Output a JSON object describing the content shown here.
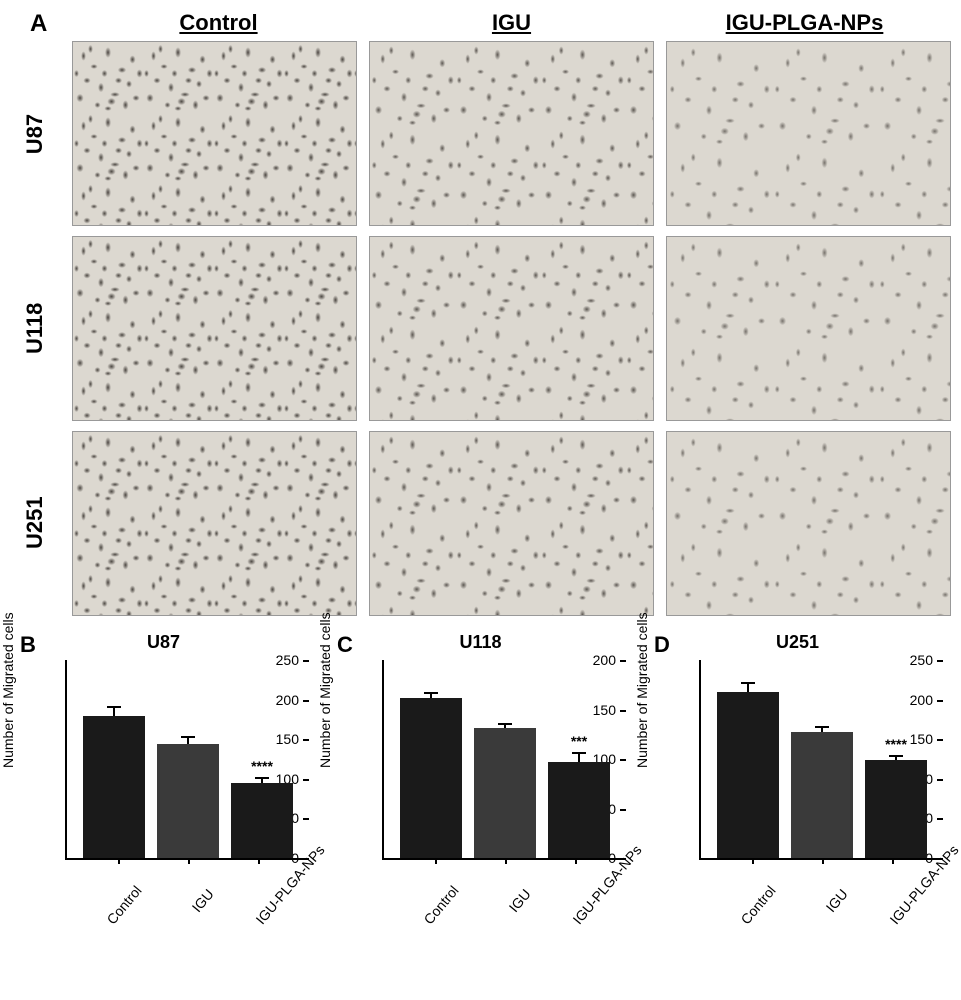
{
  "panelA": {
    "label": "A",
    "columns": [
      "Control",
      "IGU",
      "IGU-PLGA-NPs"
    ],
    "rows": [
      "U87",
      "U118",
      "U251"
    ],
    "micrograph_bg": "#dcd8d0",
    "cell_color": "#4a4540",
    "density_matrix": [
      [
        "high",
        "med",
        "low"
      ],
      [
        "high",
        "med",
        "low"
      ],
      [
        "high",
        "med",
        "low"
      ]
    ]
  },
  "charts": [
    {
      "label": "B",
      "title": "U87",
      "y_label": "Number of Migrated cells",
      "y_max": 250,
      "y_ticks": [
        0,
        50,
        100,
        150,
        200,
        250
      ],
      "categories": [
        "Control",
        "IGU",
        "IGU-PLGA-NPs"
      ],
      "values": [
        178,
        142,
        94
      ],
      "errors": [
        12,
        10,
        7
      ],
      "bar_colors": [
        "#1a1a1a",
        "#3a3a3a",
        "#1a1a1a"
      ],
      "significance": [
        "",
        "",
        "****"
      ]
    },
    {
      "label": "C",
      "title": "U118",
      "y_label": "Number of Migrated cells",
      "y_max": 200,
      "y_ticks": [
        0,
        50,
        100,
        150,
        200
      ],
      "categories": [
        "Control",
        "IGU",
        "IGU-PLGA-NPs"
      ],
      "values": [
        160,
        130,
        96
      ],
      "errors": [
        6,
        5,
        10
      ],
      "bar_colors": [
        "#1a1a1a",
        "#3a3a3a",
        "#1a1a1a"
      ],
      "significance": [
        "",
        "",
        "***"
      ]
    },
    {
      "label": "D",
      "title": "U251",
      "y_label": "Number of Migrated cells",
      "y_max": 250,
      "y_ticks": [
        0,
        50,
        100,
        150,
        200,
        250
      ],
      "categories": [
        "Control",
        "IGU",
        "IGU-PLGA-NPs"
      ],
      "values": [
        208,
        158,
        122
      ],
      "errors": [
        12,
        7,
        7
      ],
      "bar_colors": [
        "#1a1a1a",
        "#3a3a3a",
        "#1a1a1a"
      ],
      "significance": [
        "",
        "",
        "****"
      ]
    }
  ],
  "style": {
    "axis_color": "#000000",
    "font_family": "Arial",
    "title_fontsize": 18,
    "label_fontsize": 14
  }
}
